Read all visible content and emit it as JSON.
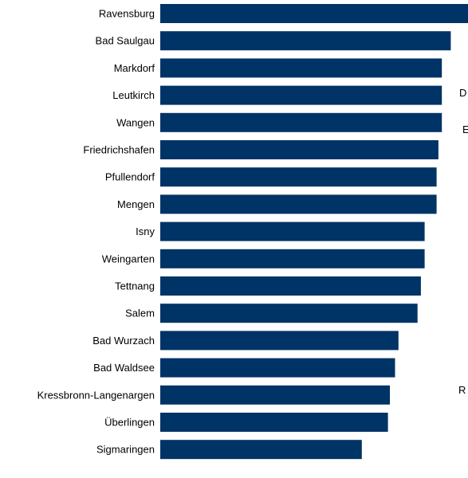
{
  "chart_data": {
    "type": "bar",
    "orientation": "horizontal",
    "categories": [
      "Ravensburg",
      "Bad Saulgau",
      "Markdorf",
      "Leutkirch",
      "Wangen",
      "Friedrichshafen",
      "Pfullendorf",
      "Mengen",
      "Isny",
      "Weingarten",
      "Tettnang",
      "Salem",
      "Bad Wurzach",
      "Bad Waldsee",
      "Kressbronn-Langenargen",
      "Überlingen",
      "Sigmaringen"
    ],
    "values": [
      100,
      94.4,
      91.5,
      91.5,
      91.5,
      90.4,
      89.8,
      89.8,
      85.9,
      85.9,
      84.7,
      83.6,
      77.4,
      76.3,
      74.6,
      74.0,
      65.5
    ],
    "title": "",
    "xlabel": "",
    "ylabel": "",
    "xlim": [
      0,
      100
    ],
    "grid": false,
    "legend": "none",
    "bar_color": "#003366"
  },
  "side_labels": {
    "d": "D",
    "e": "E",
    "r": "R"
  }
}
